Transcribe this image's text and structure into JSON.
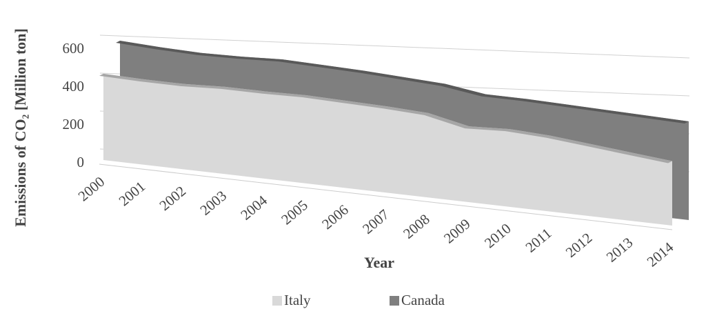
{
  "chart_data": {
    "type": "area3d",
    "y_label": "Emissions of CO₂ [Million ton]",
    "x_label": "Year",
    "categories": [
      "2000",
      "2001",
      "2002",
      "2003",
      "2004",
      "2005",
      "2006",
      "2007",
      "2008",
      "2009",
      "2010",
      "2011",
      "2012",
      "2013",
      "2014"
    ],
    "series": [
      {
        "name": "Italy",
        "color": "#d9d9d9",
        "values": [
          455,
          450,
          450,
          460,
          460,
          465,
          460,
          455,
          445,
          400,
          410,
          400,
          380,
          360,
          340
        ]
      },
      {
        "name": "Canada",
        "color": "#7f7f7f",
        "values": [
          600,
          590,
          585,
          590,
          600,
          595,
          590,
          580,
          570,
          540,
          540,
          535,
          530,
          525,
          520
        ]
      }
    ],
    "ylim": [
      0,
      600
    ],
    "yticks": [
      0,
      200,
      400,
      600
    ],
    "grid": true
  }
}
